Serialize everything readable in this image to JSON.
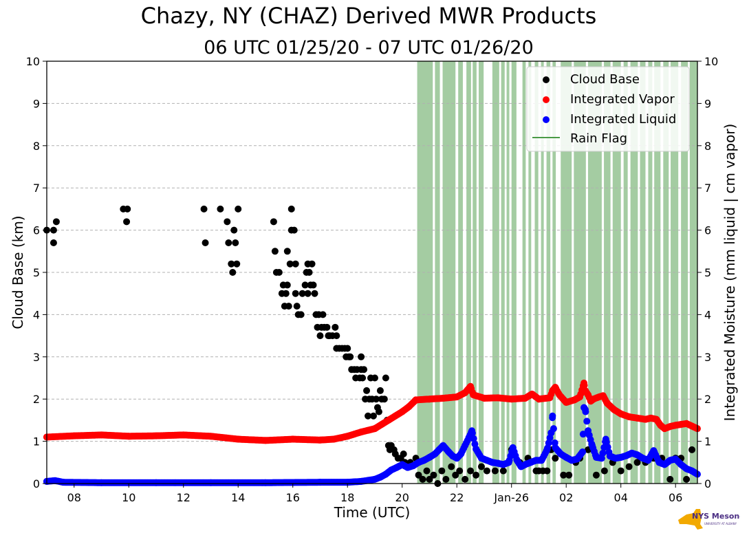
{
  "figure": {
    "title": "Chazy, NY (CHAZ) Derived MWR Products",
    "subtitle": "06 UTC 01/25/20 - 07 UTC 01/26/20"
  },
  "logo": {
    "text": "NYS Mesonet",
    "subtext": "UNIVERSITY AT ALBANY"
  },
  "colors": {
    "cloud_base": "#000000",
    "vapor": "#ff0000",
    "liquid": "#0000ff",
    "rain_flag": "#4a9a46",
    "grid": "#b0b0b0"
  },
  "chart_data": {
    "type": "scatter",
    "xlabel": "Time (UTC)",
    "ylabel_left": "Cloud Base (km)",
    "ylabel_right": "Integrated Moisture (mm liquid | cm vapor)",
    "xlim_hours": [
      7,
      30.8
    ],
    "ylim": [
      0,
      10
    ],
    "y_ticks": [
      0,
      1,
      2,
      3,
      4,
      5,
      6,
      7,
      8,
      9,
      10
    ],
    "x_ticks": [
      {
        "h": 8,
        "label": "08"
      },
      {
        "h": 10,
        "label": "10"
      },
      {
        "h": 12,
        "label": "12"
      },
      {
        "h": 14,
        "label": "14"
      },
      {
        "h": 16,
        "label": "16"
      },
      {
        "h": 18,
        "label": "18"
      },
      {
        "h": 20,
        "label": "20"
      },
      {
        "h": 22,
        "label": "22"
      },
      {
        "h": 24,
        "label": "Jan-26"
      },
      {
        "h": 26,
        "label": "02"
      },
      {
        "h": 28,
        "label": "04"
      },
      {
        "h": 30,
        "label": "06"
      }
    ],
    "grid": "horizontal dashed",
    "legend_position": "top-right",
    "legend": [
      "Cloud Base",
      "Integrated Vapor",
      "Integrated Liquid",
      "Rain Flag"
    ],
    "cloud_base": [
      [
        7.0,
        6.0
      ],
      [
        7.25,
        6.0
      ],
      [
        7.25,
        5.7
      ],
      [
        7.35,
        6.2
      ],
      [
        9.8,
        6.5
      ],
      [
        9.95,
        6.5
      ],
      [
        9.92,
        6.2
      ],
      [
        12.75,
        6.5
      ],
      [
        12.8,
        5.7
      ],
      [
        13.35,
        6.5
      ],
      [
        13.6,
        6.2
      ],
      [
        13.65,
        5.7
      ],
      [
        13.75,
        5.2
      ],
      [
        13.8,
        5.0
      ],
      [
        13.85,
        6.0
      ],
      [
        13.9,
        5.7
      ],
      [
        13.95,
        5.2
      ],
      [
        14.0,
        6.5
      ],
      [
        15.3,
        6.2
      ],
      [
        15.35,
        5.5
      ],
      [
        15.4,
        5.0
      ],
      [
        15.5,
        5.0
      ],
      [
        15.6,
        4.5
      ],
      [
        15.65,
        4.7
      ],
      [
        15.7,
        4.2
      ],
      [
        15.75,
        4.5
      ],
      [
        15.8,
        4.7
      ],
      [
        15.85,
        4.2
      ],
      [
        15.8,
        5.5
      ],
      [
        15.9,
        5.2
      ],
      [
        15.95,
        6.0
      ],
      [
        15.95,
        6.5
      ],
      [
        16.05,
        6.0
      ],
      [
        16.1,
        5.2
      ],
      [
        16.1,
        4.5
      ],
      [
        16.15,
        4.2
      ],
      [
        16.2,
        4.0
      ],
      [
        16.3,
        4.0
      ],
      [
        16.35,
        4.5
      ],
      [
        16.45,
        4.7
      ],
      [
        16.5,
        5.0
      ],
      [
        16.55,
        4.5
      ],
      [
        16.55,
        5.2
      ],
      [
        16.6,
        5.0
      ],
      [
        16.65,
        4.7
      ],
      [
        16.7,
        5.2
      ],
      [
        16.75,
        4.7
      ],
      [
        16.8,
        4.5
      ],
      [
        16.85,
        4.0
      ],
      [
        16.95,
        4.0
      ],
      [
        16.9,
        3.7
      ],
      [
        17.0,
        3.5
      ],
      [
        17.05,
        3.7
      ],
      [
        17.1,
        4.0
      ],
      [
        17.15,
        3.7
      ],
      [
        17.25,
        3.7
      ],
      [
        17.3,
        3.5
      ],
      [
        17.35,
        3.5
      ],
      [
        17.45,
        3.5
      ],
      [
        17.55,
        3.7
      ],
      [
        17.6,
        3.5
      ],
      [
        17.6,
        3.2
      ],
      [
        17.7,
        3.2
      ],
      [
        17.8,
        3.2
      ],
      [
        17.9,
        3.2
      ],
      [
        17.95,
        3.0
      ],
      [
        18.0,
        3.2
      ],
      [
        18.05,
        3.0
      ],
      [
        18.15,
        2.7
      ],
      [
        18.1,
        3.0
      ],
      [
        18.25,
        2.7
      ],
      [
        18.3,
        2.5
      ],
      [
        18.35,
        2.7
      ],
      [
        18.45,
        2.5
      ],
      [
        18.5,
        2.7
      ],
      [
        18.5,
        3.0
      ],
      [
        18.55,
        2.5
      ],
      [
        18.6,
        2.7
      ],
      [
        18.65,
        2.0
      ],
      [
        18.7,
        2.2
      ],
      [
        18.75,
        1.6
      ],
      [
        18.8,
        2.0
      ],
      [
        18.85,
        2.5
      ],
      [
        18.9,
        2.0
      ],
      [
        18.95,
        1.6
      ],
      [
        19.0,
        2.5
      ],
      [
        19.05,
        2.0
      ],
      [
        19.1,
        1.8
      ],
      [
        19.15,
        1.7
      ],
      [
        19.2,
        2.2
      ],
      [
        19.25,
        2.0
      ],
      [
        19.35,
        2.0
      ],
      [
        19.4,
        2.5
      ],
      [
        19.45,
        1.5
      ],
      [
        19.5,
        0.9
      ],
      [
        19.55,
        0.8
      ],
      [
        19.6,
        0.9
      ],
      [
        19.7,
        0.8
      ],
      [
        19.75,
        0.7
      ],
      [
        19.85,
        0.6
      ],
      [
        19.95,
        0.6
      ],
      [
        20.05,
        0.7
      ],
      [
        20.1,
        0.5
      ],
      [
        20.2,
        0.4
      ],
      [
        20.3,
        0.5
      ],
      [
        20.5,
        0.6
      ],
      [
        20.6,
        0.2
      ],
      [
        20.75,
        0.1
      ],
      [
        20.9,
        0.3
      ],
      [
        21.0,
        0.1
      ],
      [
        21.15,
        0.2
      ],
      [
        21.3,
        0.0
      ],
      [
        21.45,
        0.3
      ],
      [
        21.6,
        0.1
      ],
      [
        21.8,
        0.4
      ],
      [
        21.95,
        0.2
      ],
      [
        22.1,
        0.3
      ],
      [
        22.3,
        0.1
      ],
      [
        22.5,
        0.3
      ],
      [
        22.7,
        0.2
      ],
      [
        22.9,
        0.4
      ],
      [
        23.1,
        0.3
      ],
      [
        23.4,
        0.3
      ],
      [
        23.7,
        0.3
      ],
      [
        24.0,
        0.8
      ],
      [
        24.3,
        0.5
      ],
      [
        24.6,
        0.6
      ],
      [
        24.9,
        0.3
      ],
      [
        25.0,
        0.3
      ],
      [
        25.15,
        0.3
      ],
      [
        25.3,
        0.3
      ],
      [
        25.45,
        0.8
      ],
      [
        25.6,
        0.6
      ],
      [
        25.9,
        0.2
      ],
      [
        26.1,
        0.2
      ],
      [
        26.35,
        0.5
      ],
      [
        26.5,
        0.6
      ],
      [
        26.8,
        0.8
      ],
      [
        27.1,
        0.2
      ],
      [
        27.4,
        0.3
      ],
      [
        27.7,
        0.5
      ],
      [
        28.0,
        0.3
      ],
      [
        28.3,
        0.4
      ],
      [
        28.6,
        0.5
      ],
      [
        28.9,
        0.5
      ],
      [
        29.2,
        0.6
      ],
      [
        29.5,
        0.6
      ],
      [
        29.8,
        0.1
      ],
      [
        30.0,
        0.6
      ],
      [
        30.2,
        0.6
      ],
      [
        30.4,
        0.1
      ],
      [
        30.6,
        0.8
      ]
    ],
    "integrated_vapor": [
      [
        7.0,
        1.1
      ],
      [
        8.0,
        1.13
      ],
      [
        9.0,
        1.15
      ],
      [
        10.0,
        1.12
      ],
      [
        11.0,
        1.13
      ],
      [
        12.0,
        1.15
      ],
      [
        13.0,
        1.12
      ],
      [
        14.0,
        1.05
      ],
      [
        15.0,
        1.02
      ],
      [
        16.0,
        1.05
      ],
      [
        17.0,
        1.03
      ],
      [
        17.5,
        1.05
      ],
      [
        18.0,
        1.12
      ],
      [
        18.5,
        1.22
      ],
      [
        19.0,
        1.3
      ],
      [
        19.5,
        1.5
      ],
      [
        19.75,
        1.6
      ],
      [
        20.0,
        1.7
      ],
      [
        20.25,
        1.82
      ],
      [
        20.5,
        1.98
      ],
      [
        21.0,
        2.0
      ],
      [
        21.5,
        2.02
      ],
      [
        22.0,
        2.05
      ],
      [
        22.3,
        2.15
      ],
      [
        22.5,
        2.3
      ],
      [
        22.6,
        2.1
      ],
      [
        23.0,
        2.02
      ],
      [
        23.5,
        2.03
      ],
      [
        24.0,
        2.0
      ],
      [
        24.5,
        2.02
      ],
      [
        24.75,
        2.12
      ],
      [
        25.0,
        2.0
      ],
      [
        25.4,
        2.03
      ],
      [
        25.5,
        2.2
      ],
      [
        25.6,
        2.28
      ],
      [
        25.75,
        2.1
      ],
      [
        26.0,
        1.92
      ],
      [
        26.3,
        1.98
      ],
      [
        26.5,
        2.05
      ],
      [
        26.65,
        2.38
      ],
      [
        26.7,
        2.2
      ],
      [
        26.8,
        2.1
      ],
      [
        26.9,
        1.95
      ],
      [
        27.0,
        2.0
      ],
      [
        27.2,
        2.05
      ],
      [
        27.35,
        2.08
      ],
      [
        27.5,
        1.9
      ],
      [
        27.75,
        1.75
      ],
      [
        28.0,
        1.65
      ],
      [
        28.3,
        1.58
      ],
      [
        28.6,
        1.55
      ],
      [
        28.9,
        1.52
      ],
      [
        29.1,
        1.55
      ],
      [
        29.3,
        1.52
      ],
      [
        29.45,
        1.38
      ],
      [
        29.6,
        1.3
      ],
      [
        29.8,
        1.35
      ],
      [
        30.0,
        1.38
      ],
      [
        30.2,
        1.4
      ],
      [
        30.4,
        1.42
      ],
      [
        30.6,
        1.36
      ],
      [
        30.8,
        1.3
      ]
    ],
    "integrated_liquid": [
      [
        7.0,
        0.05
      ],
      [
        7.3,
        0.07
      ],
      [
        7.6,
        0.03
      ],
      [
        9.0,
        0.02
      ],
      [
        11.0,
        0.02
      ],
      [
        13.0,
        0.02
      ],
      [
        15.0,
        0.02
      ],
      [
        17.0,
        0.03
      ],
      [
        18.0,
        0.03
      ],
      [
        18.5,
        0.05
      ],
      [
        19.0,
        0.1
      ],
      [
        19.2,
        0.15
      ],
      [
        19.4,
        0.22
      ],
      [
        19.6,
        0.32
      ],
      [
        19.8,
        0.38
      ],
      [
        20.0,
        0.45
      ],
      [
        20.2,
        0.38
      ],
      [
        20.4,
        0.42
      ],
      [
        20.6,
        0.5
      ],
      [
        20.8,
        0.55
      ],
      [
        21.0,
        0.62
      ],
      [
        21.2,
        0.7
      ],
      [
        21.35,
        0.8
      ],
      [
        21.5,
        0.9
      ],
      [
        21.7,
        0.75
      ],
      [
        21.85,
        0.65
      ],
      [
        22.0,
        0.6
      ],
      [
        22.15,
        0.7
      ],
      [
        22.3,
        0.9
      ],
      [
        22.45,
        1.1
      ],
      [
        22.55,
        1.25
      ],
      [
        22.7,
        0.82
      ],
      [
        22.9,
        0.6
      ],
      [
        23.1,
        0.55
      ],
      [
        23.3,
        0.5
      ],
      [
        23.5,
        0.48
      ],
      [
        23.7,
        0.45
      ],
      [
        23.9,
        0.5
      ],
      [
        24.05,
        0.85
      ],
      [
        24.2,
        0.55
      ],
      [
        24.35,
        0.4
      ],
      [
        24.5,
        0.45
      ],
      [
        24.7,
        0.5
      ],
      [
        24.9,
        0.55
      ],
      [
        25.1,
        0.55
      ],
      [
        25.3,
        0.8
      ],
      [
        25.45,
        1.2
      ],
      [
        25.5,
        1.6
      ],
      [
        25.6,
        0.85
      ],
      [
        25.8,
        0.7
      ],
      [
        26.0,
        0.62
      ],
      [
        26.2,
        0.55
      ],
      [
        26.4,
        0.58
      ],
      [
        26.6,
        0.75
      ],
      [
        26.65,
        1.8
      ],
      [
        26.7,
        1.75
      ],
      [
        26.8,
        1.25
      ],
      [
        26.95,
        0.9
      ],
      [
        27.1,
        0.62
      ],
      [
        27.3,
        0.6
      ],
      [
        27.45,
        1.05
      ],
      [
        27.6,
        0.65
      ],
      [
        27.8,
        0.6
      ],
      [
        28.0,
        0.62
      ],
      [
        28.2,
        0.66
      ],
      [
        28.4,
        0.72
      ],
      [
        28.6,
        0.68
      ],
      [
        28.8,
        0.6
      ],
      [
        29.0,
        0.55
      ],
      [
        29.2,
        0.78
      ],
      [
        29.4,
        0.5
      ],
      [
        29.6,
        0.45
      ],
      [
        29.8,
        0.55
      ],
      [
        30.0,
        0.58
      ],
      [
        30.2,
        0.45
      ],
      [
        30.4,
        0.35
      ],
      [
        30.6,
        0.3
      ],
      [
        30.8,
        0.22
      ]
    ],
    "rain_flag_intervals": [
      [
        20.55,
        21.12
      ],
      [
        21.2,
        21.38
      ],
      [
        21.48,
        21.95
      ],
      [
        22.05,
        22.22
      ],
      [
        22.35,
        22.52
      ],
      [
        22.58,
        22.72
      ],
      [
        22.8,
        22.98
      ],
      [
        23.3,
        23.55
      ],
      [
        23.62,
        23.75
      ],
      [
        23.82,
        23.92
      ],
      [
        24.0,
        24.18
      ],
      [
        24.4,
        24.52
      ],
      [
        24.62,
        24.72
      ],
      [
        24.85,
        24.98
      ],
      [
        25.08,
        25.18
      ],
      [
        25.28,
        25.42
      ],
      [
        25.5,
        25.62
      ],
      [
        25.8,
        26.2
      ],
      [
        26.28,
        26.72
      ],
      [
        26.8,
        27.3
      ],
      [
        27.38,
        27.62
      ],
      [
        27.7,
        28.0
      ],
      [
        28.1,
        28.25
      ],
      [
        28.35,
        28.62
      ],
      [
        28.7,
        28.9
      ],
      [
        29.0,
        29.15
      ],
      [
        29.22,
        29.45
      ],
      [
        29.55,
        29.75
      ],
      [
        29.82,
        30.1
      ],
      [
        30.2,
        30.45
      ],
      [
        30.52,
        30.8
      ]
    ]
  }
}
